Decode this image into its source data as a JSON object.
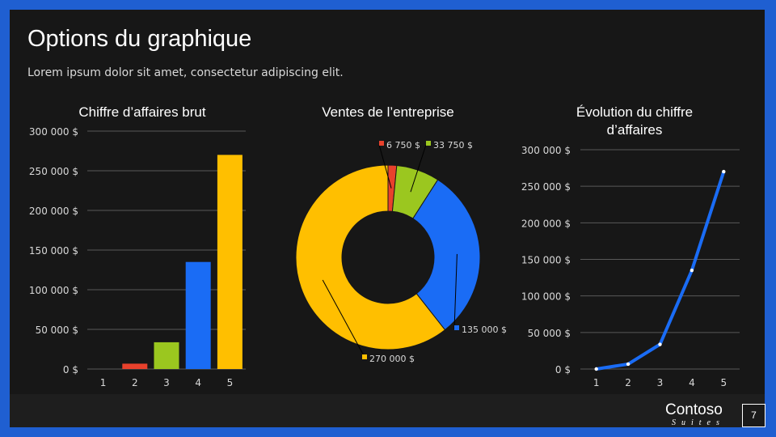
{
  "slide": {
    "title": "Options du graphique",
    "subtitle": "Lorem ipsum dolor sit amet, consectetur adipiscing elit.",
    "logo": {
      "name": "Contoso",
      "suffix": "Suites"
    },
    "page_number": "7"
  },
  "colors": {
    "background": "#171717",
    "border": "#1f5fd1",
    "red": "#e8412c",
    "green": "#9bc71f",
    "blue": "#1a6cf5",
    "gold": "#ffbf00"
  },
  "chart_data": [
    {
      "type": "bar",
      "title": "Chiffre d’affaires brut",
      "categories": [
        "1",
        "2",
        "3",
        "4",
        "5"
      ],
      "values": [
        0,
        6750,
        33750,
        135000,
        270000
      ],
      "colors": [
        "#171717",
        "#e8412c",
        "#9bc71f",
        "#1a6cf5",
        "#ffbf00"
      ],
      "ylim": [
        0,
        300000
      ],
      "ytick_values": [
        0,
        50000,
        100000,
        150000,
        200000,
        250000,
        300000
      ],
      "ytick_labels": [
        "0 $",
        "50 000 $",
        "100 000 $",
        "150 000 $",
        "200 000 $",
        "250 000 $",
        "300 000 $"
      ],
      "grid": true,
      "legend": "none"
    },
    {
      "type": "pie",
      "subtype": "donut",
      "title": "Ventes de l’entreprise",
      "values": [
        0,
        6750,
        33750,
        135000,
        270000
      ],
      "labels": [
        "",
        "6 750 $",
        "33 750 $",
        "135 000 $",
        "270 000 $"
      ],
      "colors": [
        "#171717",
        "#e8412c",
        "#9bc71f",
        "#1a6cf5",
        "#ffbf00"
      ],
      "legend": "none"
    },
    {
      "type": "line",
      "title": "Évolution du chiffre d’affaires",
      "title_lines": [
        "Évolution du chiffre",
        "d’affaires"
      ],
      "x": [
        "1",
        "2",
        "3",
        "4",
        "5"
      ],
      "values": [
        0,
        6750,
        33750,
        135000,
        270000
      ],
      "color": "#1a6cf5",
      "ylim": [
        0,
        300000
      ],
      "ytick_values": [
        0,
        50000,
        100000,
        150000,
        200000,
        250000,
        300000
      ],
      "ytick_labels": [
        "0 $",
        "50 000 $",
        "100 000 $",
        "150 000 $",
        "200 000 $",
        "250 000 $",
        "300 000 $"
      ],
      "grid": true,
      "legend": "none"
    }
  ]
}
